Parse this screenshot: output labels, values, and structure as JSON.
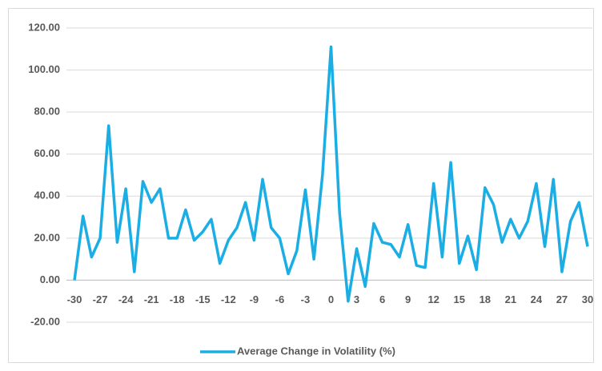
{
  "chart_data": {
    "type": "line",
    "x": [
      -30,
      -29,
      -28,
      -27,
      -26,
      -25,
      -24,
      -23,
      -22,
      -21,
      -20,
      -19,
      -18,
      -17,
      -16,
      -15,
      -14,
      -13,
      -12,
      -11,
      -10,
      -9,
      -8,
      -7,
      -6,
      -5,
      -4,
      -3,
      -2,
      -1,
      0,
      1,
      2,
      3,
      4,
      5,
      6,
      7,
      8,
      9,
      10,
      11,
      12,
      13,
      14,
      15,
      16,
      17,
      18,
      19,
      20,
      21,
      22,
      23,
      24,
      25,
      26,
      27,
      28,
      29,
      30
    ],
    "series": [
      {
        "name": "Average Change in Volatility  (%)",
        "color": "#1aaee5",
        "values": [
          0,
          30.5,
          11,
          20,
          73.5,
          18,
          43.5,
          4,
          47,
          37,
          43.5,
          20,
          20,
          33.5,
          19,
          23,
          29,
          8,
          19,
          25,
          37,
          19,
          48,
          25,
          20,
          3,
          14,
          43,
          10,
          50,
          111,
          32,
          -10,
          15,
          -3,
          27,
          18,
          17,
          11,
          26.5,
          7,
          6,
          46,
          11,
          56,
          8,
          21,
          5,
          44,
          36,
          18,
          29,
          20,
          28,
          46,
          16,
          48,
          4,
          28,
          37,
          16
        ]
      }
    ],
    "xlim": [
      -30,
      30
    ],
    "xticks": [
      -30,
      -27,
      -24,
      -21,
      -18,
      -15,
      -12,
      -9,
      -6,
      -3,
      0,
      3,
      6,
      9,
      12,
      15,
      18,
      21,
      24,
      27,
      30
    ],
    "ylim": [
      -20,
      120
    ],
    "yticks": [
      {
        "value": -20,
        "label": "-20.00"
      },
      {
        "value": 0,
        "label": "0.00"
      },
      {
        "value": 20,
        "label": "20.00"
      },
      {
        "value": 40,
        "label": "40.00"
      },
      {
        "value": 60,
        "label": "60.00"
      },
      {
        "value": 80,
        "label": "80.00"
      },
      {
        "value": 100,
        "label": "100.00"
      },
      {
        "value": 120,
        "label": "120.00"
      }
    ],
    "grid": true,
    "legend": "bottom"
  }
}
